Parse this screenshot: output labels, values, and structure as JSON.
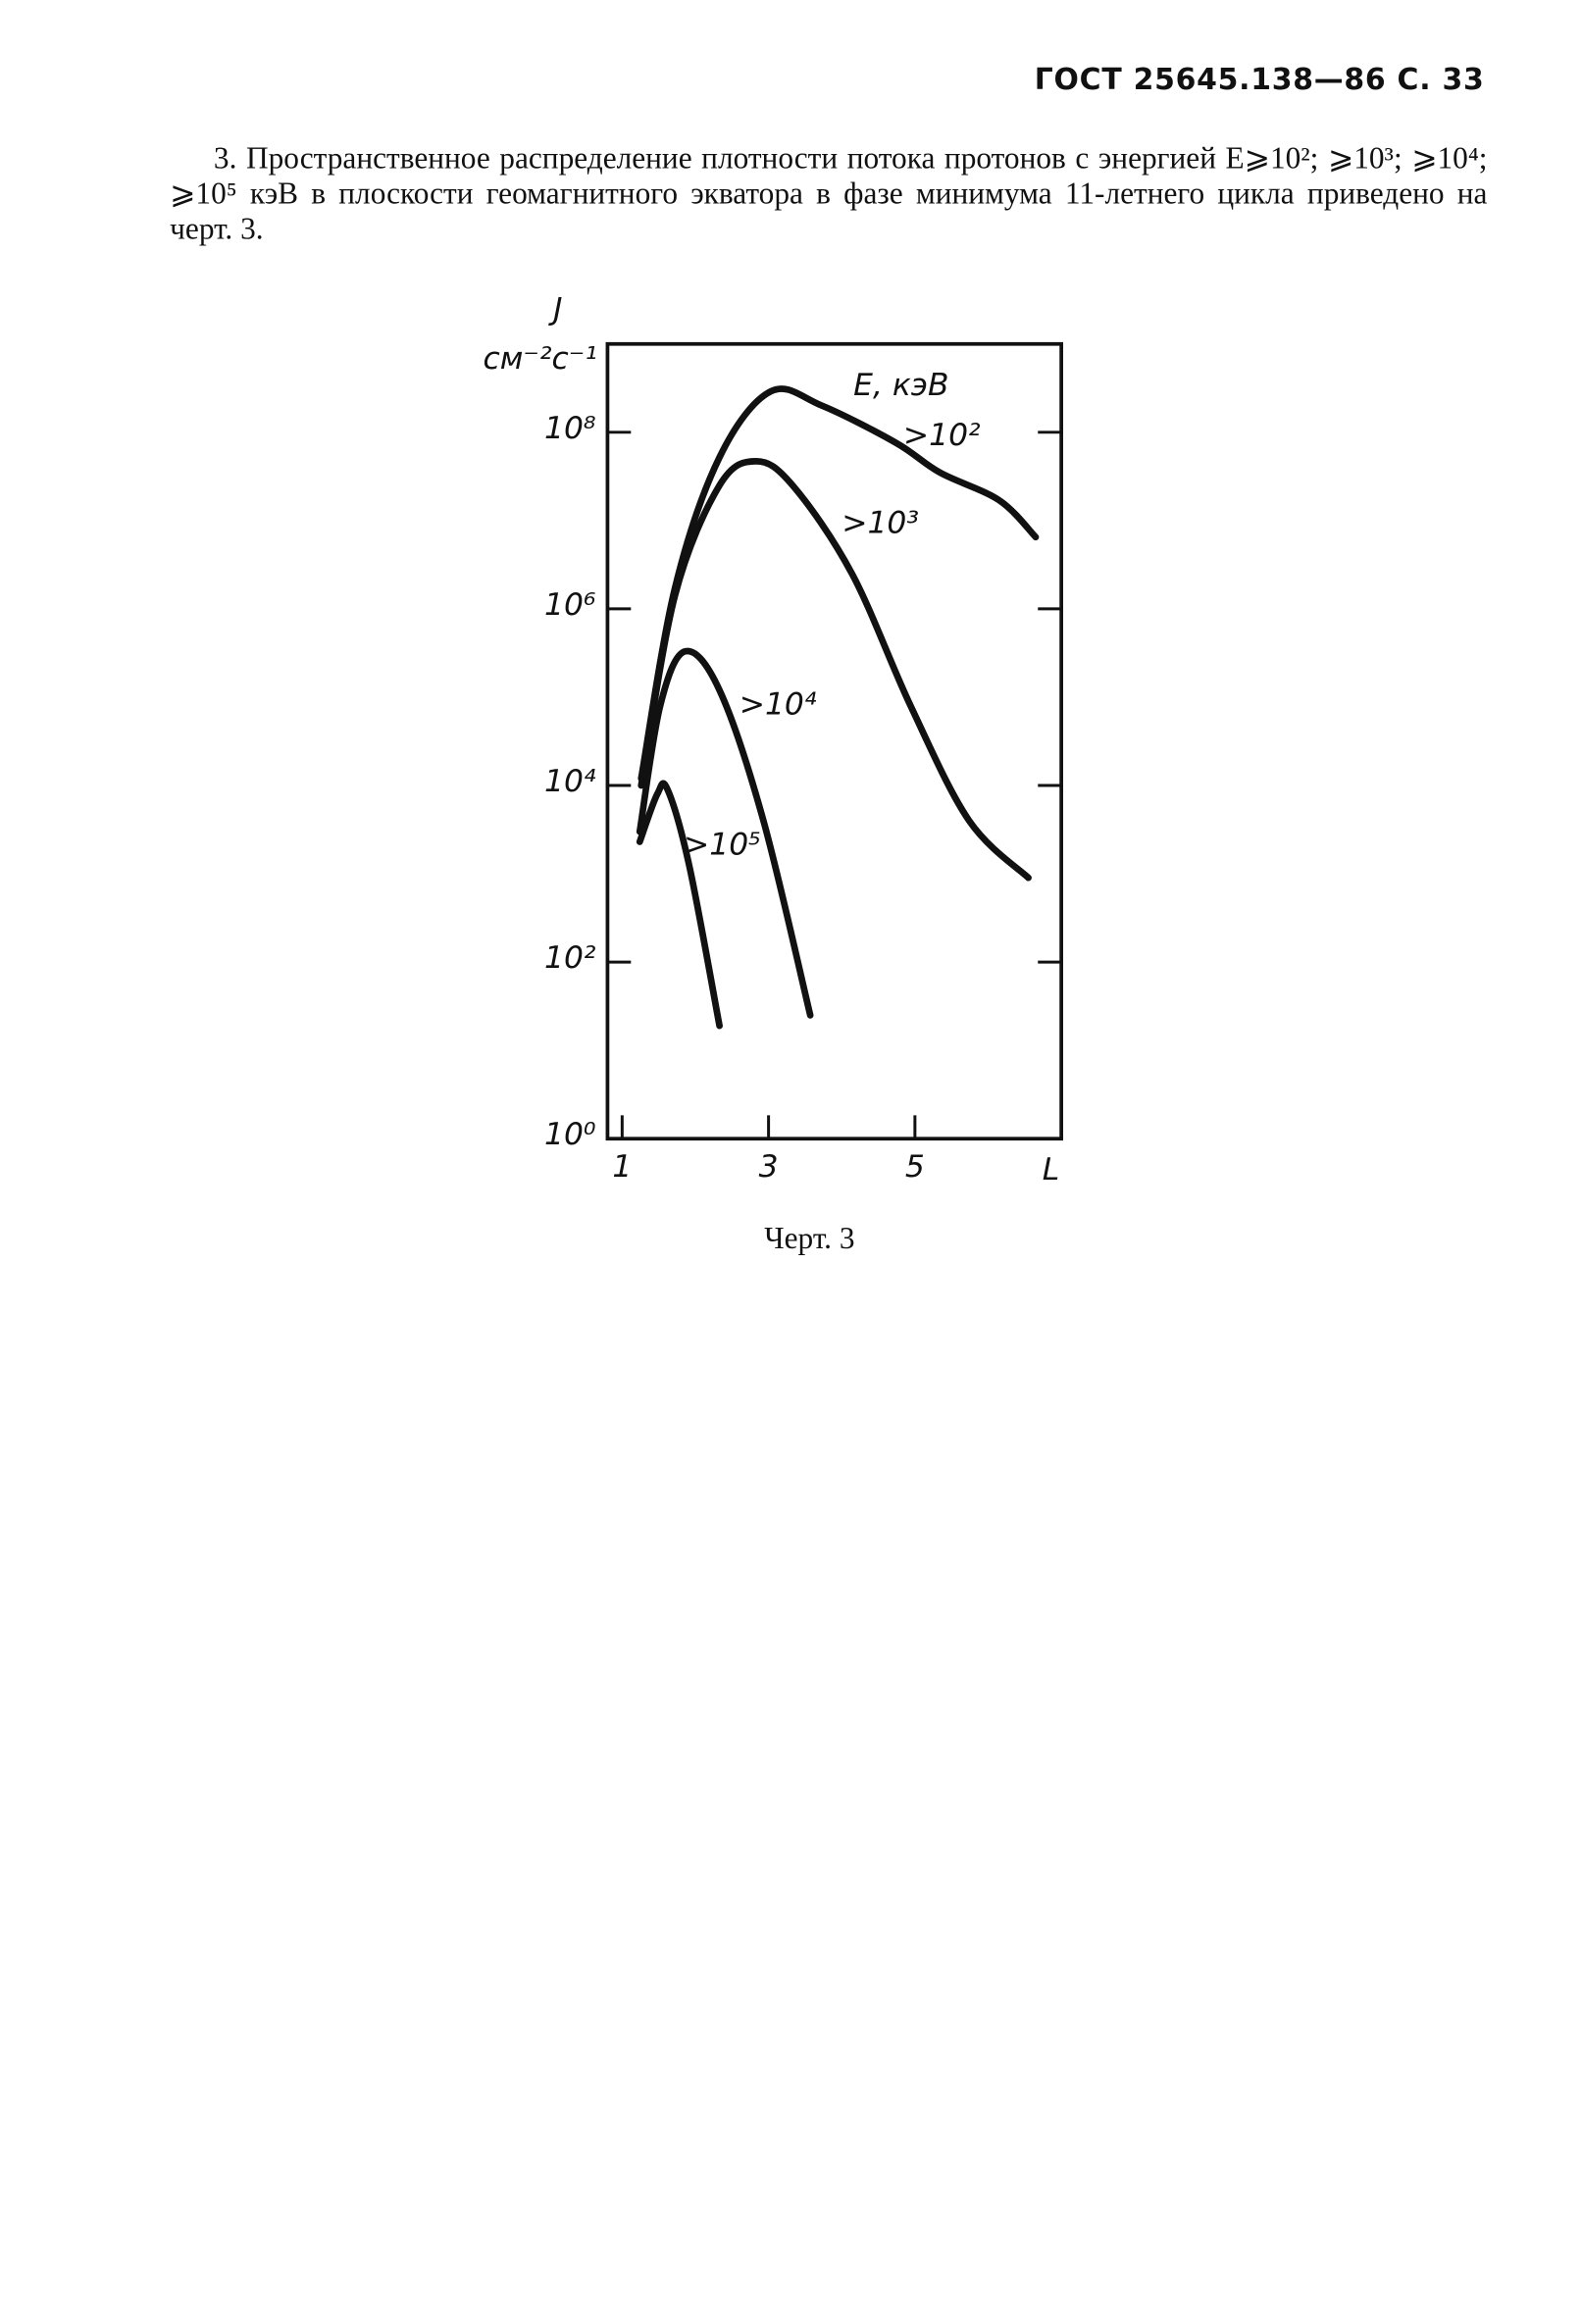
{
  "header": {
    "title": "ГОСТ 25645.138—86 С. 33"
  },
  "paragraph": "3. Пространственное распределение плотности потока протонов с энергией E⩾10²; ⩾10³; ⩾10⁴; ⩾10⁵ кэВ в плоскости геомагнитного экватора в фазе минимума 11-летнего цикла приведено на черт. 3.",
  "chart_data": {
    "type": "line",
    "y_label": "J",
    "y_unit": "см⁻²с⁻¹",
    "x_label": "L",
    "legend_title": "E, кэВ",
    "log_y": true,
    "xlim": [
      0.8,
      7
    ],
    "xticks": [
      1,
      3,
      5
    ],
    "ylim": [
      1,
      1000000000
    ],
    "yticks": [
      {
        "value": 1,
        "label": "10⁰"
      },
      {
        "value": 100,
        "label": "10²"
      },
      {
        "value": 10000,
        "label": "10⁴"
      },
      {
        "value": 1000000,
        "label": "10⁶"
      },
      {
        "value": 100000000,
        "label": "10⁸"
      }
    ],
    "series": [
      {
        "name": ">10²",
        "color": "#111111",
        "x": [
          1.26,
          1.72,
          2.33,
          3.03,
          3.73,
          4.74,
          5.34,
          6.15,
          6.65
        ],
        "values": [
          12000,
          1700000,
          52000000,
          290000000,
          200000000,
          76000000,
          35000000,
          17000000,
          6500000
        ]
      },
      {
        "name": ">10³",
        "color": "#111111",
        "x": [
          1.26,
          1.72,
          2.33,
          2.83,
          3.33,
          4.14,
          4.94,
          5.74,
          6.55
        ],
        "values": [
          10000,
          1400000,
          25000000,
          47000000,
          25000000,
          2500000,
          80000,
          4000,
          900
        ]
      },
      {
        "name": ">10⁴",
        "color": "#111111",
        "x": [
          1.24,
          1.52,
          1.86,
          2.33,
          2.93,
          3.57
        ],
        "values": [
          3000,
          80000,
          330000,
          120000,
          4000,
          25
        ]
      },
      {
        "name": ">10⁵",
        "color": "#111111",
        "x": [
          1.24,
          1.48,
          1.62,
          1.92,
          2.33
        ],
        "values": [
          2300,
          8000,
          9000,
          1200,
          19
        ]
      }
    ]
  },
  "caption": "Черт. 3"
}
